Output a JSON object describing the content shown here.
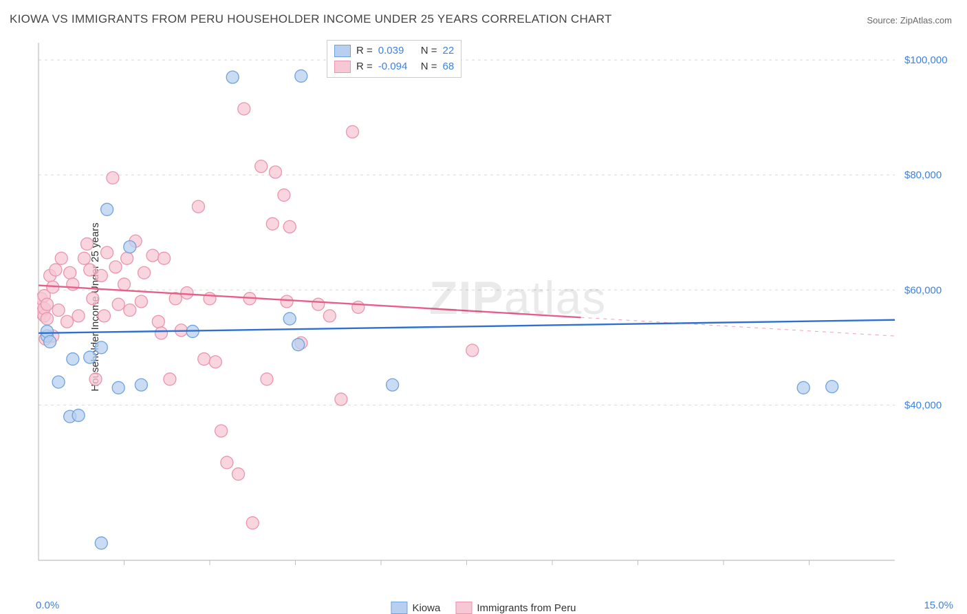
{
  "title": "KIOWA VS IMMIGRANTS FROM PERU HOUSEHOLDER INCOME UNDER 25 YEARS CORRELATION CHART",
  "source": "Source: ZipAtlas.com",
  "ylabel": "Householder Income Under 25 years",
  "watermark_a": "ZIP",
  "watermark_b": "atlas",
  "chart": {
    "type": "scatter",
    "xlim": [
      0,
      15
    ],
    "ylim": [
      13000,
      103000
    ],
    "x_ticks": [
      0,
      15
    ],
    "x_tick_labels": [
      "0.0%",
      "15.0%"
    ],
    "y_ticks": [
      40000,
      60000,
      80000,
      100000
    ],
    "y_tick_labels": [
      "$40,000",
      "$60,000",
      "$80,000",
      "$100,000"
    ],
    "grid_color": "#d8d8d8",
    "axis_color": "#bfbfbf",
    "background": "#ffffff",
    "x_minor_ticks": [
      1.5,
      3.0,
      4.5,
      6.0,
      7.5,
      9.0,
      10.5,
      12.0,
      13.5
    ],
    "marker_radius": 9,
    "marker_stroke_width": 1.3,
    "series": [
      {
        "name": "Kiowa",
        "color_fill": "#b8d0ef",
        "color_stroke": "#6ea2de",
        "R": "0.039",
        "N": "22",
        "trend": {
          "y_at_xmin": 52500,
          "y_at_xmax": 54800,
          "solid_to_x": 15.0,
          "color": "#2f6fd1",
          "width": 2.4
        },
        "points": [
          [
            0.15,
            52000
          ],
          [
            0.15,
            52800
          ],
          [
            0.2,
            51000
          ],
          [
            0.35,
            44000
          ],
          [
            0.55,
            38000
          ],
          [
            0.7,
            38200
          ],
          [
            0.6,
            48000
          ],
          [
            0.9,
            48300
          ],
          [
            1.1,
            50000
          ],
          [
            1.2,
            74000
          ],
          [
            1.4,
            43000
          ],
          [
            1.1,
            16000
          ],
          [
            1.6,
            67500
          ],
          [
            1.8,
            43500
          ],
          [
            2.7,
            52800
          ],
          [
            3.4,
            97000
          ],
          [
            4.4,
            55000
          ],
          [
            4.6,
            97200
          ],
          [
            4.55,
            50500
          ],
          [
            6.2,
            43500
          ],
          [
            13.4,
            43000
          ],
          [
            13.9,
            43200
          ]
        ]
      },
      {
        "name": "Immigrants from Peru",
        "color_fill": "#f6c7d4",
        "color_stroke": "#ea94ad",
        "R": "-0.094",
        "N": "68",
        "trend": {
          "y_at_xmin": 60800,
          "y_at_xmax": 52000,
          "solid_to_x": 9.5,
          "color": "#e85e89",
          "width": 2.4
        },
        "points": [
          [
            0.05,
            57000
          ],
          [
            0.05,
            58500
          ],
          [
            0.05,
            56000
          ],
          [
            0.1,
            55500
          ],
          [
            0.1,
            56800
          ],
          [
            0.1,
            59000
          ],
          [
            0.12,
            51500
          ],
          [
            0.15,
            57500
          ],
          [
            0.15,
            55000
          ],
          [
            0.2,
            62500
          ],
          [
            0.25,
            60500
          ],
          [
            0.25,
            52000
          ],
          [
            0.3,
            63500
          ],
          [
            0.35,
            56500
          ],
          [
            0.4,
            65500
          ],
          [
            0.5,
            54500
          ],
          [
            0.55,
            63000
          ],
          [
            0.6,
            61000
          ],
          [
            0.7,
            55500
          ],
          [
            0.8,
            65500
          ],
          [
            0.85,
            68000
          ],
          [
            0.9,
            63500
          ],
          [
            0.95,
            58500
          ],
          [
            1.0,
            44500
          ],
          [
            1.1,
            62500
          ],
          [
            1.15,
            55500
          ],
          [
            1.2,
            66500
          ],
          [
            1.3,
            79500
          ],
          [
            1.35,
            64000
          ],
          [
            1.4,
            57500
          ],
          [
            1.5,
            61000
          ],
          [
            1.55,
            65500
          ],
          [
            1.6,
            56500
          ],
          [
            1.7,
            68500
          ],
          [
            1.8,
            58000
          ],
          [
            1.85,
            63000
          ],
          [
            2.0,
            66000
          ],
          [
            2.1,
            54500
          ],
          [
            2.15,
            52500
          ],
          [
            2.2,
            65500
          ],
          [
            2.3,
            44500
          ],
          [
            2.4,
            58500
          ],
          [
            2.5,
            53000
          ],
          [
            2.6,
            59500
          ],
          [
            2.8,
            74500
          ],
          [
            2.9,
            48000
          ],
          [
            3.0,
            58500
          ],
          [
            3.1,
            47500
          ],
          [
            3.2,
            35500
          ],
          [
            3.3,
            30000
          ],
          [
            3.5,
            28000
          ],
          [
            3.6,
            91500
          ],
          [
            3.7,
            58500
          ],
          [
            3.75,
            19500
          ],
          [
            3.9,
            81500
          ],
          [
            4.0,
            44500
          ],
          [
            4.1,
            71500
          ],
          [
            4.15,
            80500
          ],
          [
            4.3,
            76500
          ],
          [
            4.35,
            58000
          ],
          [
            4.4,
            71000
          ],
          [
            4.6,
            50800
          ],
          [
            4.9,
            57500
          ],
          [
            5.1,
            55500
          ],
          [
            5.3,
            41000
          ],
          [
            5.5,
            87500
          ],
          [
            5.6,
            57000
          ],
          [
            7.6,
            49500
          ]
        ]
      }
    ],
    "legend_bottom": [
      {
        "label": "Kiowa",
        "fill": "#b8d0ef",
        "stroke": "#6ea2de"
      },
      {
        "label": "Immigrants from Peru",
        "fill": "#f6c7d4",
        "stroke": "#ea94ad"
      }
    ]
  }
}
